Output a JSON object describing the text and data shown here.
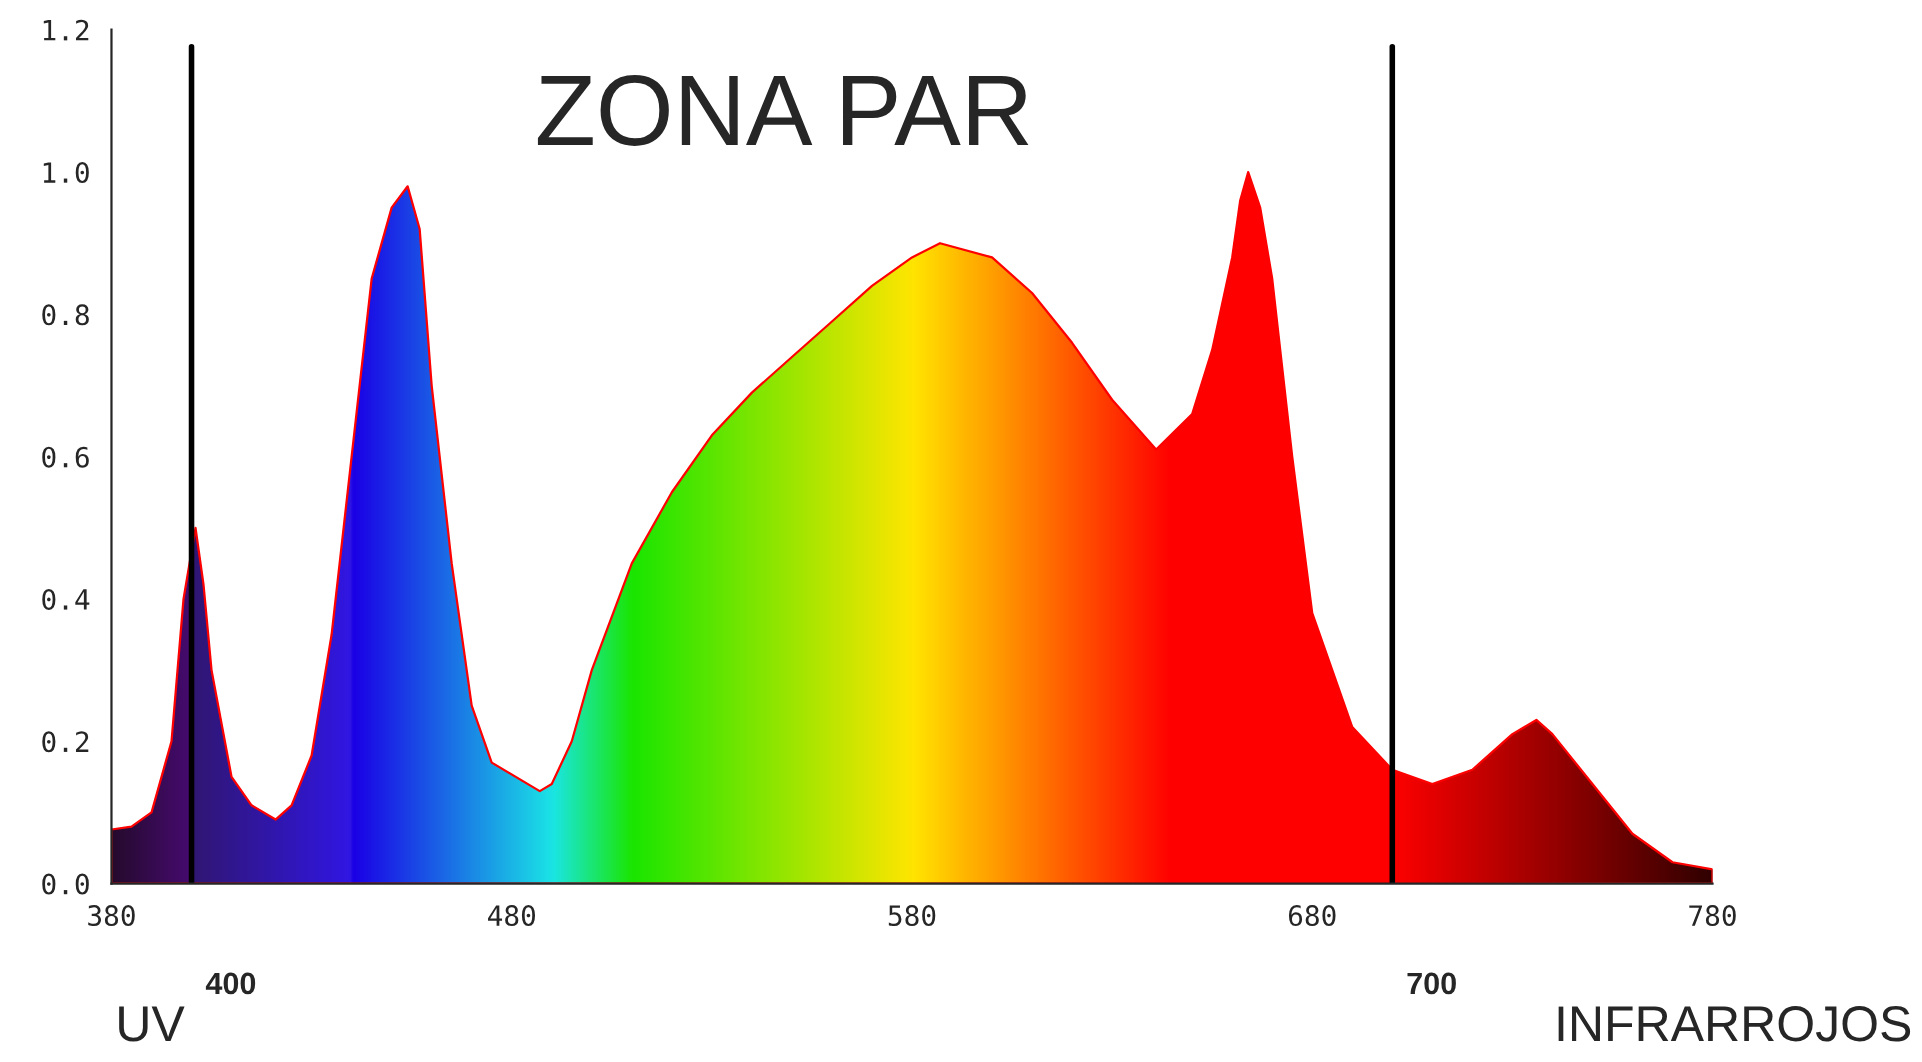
{
  "chart_data": {
    "type": "area",
    "title": "ZONA PAR",
    "x": [
      380,
      385,
      390,
      395,
      398,
      401,
      403,
      405,
      410,
      415,
      421,
      425,
      430,
      435,
      440,
      445,
      450,
      454,
      457,
      460,
      465,
      470,
      475,
      487,
      490,
      495,
      500,
      510,
      520,
      530,
      540,
      550,
      560,
      570,
      580,
      587,
      600,
      610,
      620,
      630,
      641,
      650,
      655,
      660,
      662,
      664,
      667,
      670,
      675,
      680,
      690,
      700,
      710,
      720,
      730,
      736,
      740,
      750,
      760,
      770,
      780
    ],
    "series": [
      {
        "color": "#ff0000",
        "values": [
          0.076,
          0.08,
          0.1,
          0.2,
          0.4,
          0.5,
          0.42,
          0.3,
          0.15,
          0.11,
          0.09,
          0.11,
          0.18,
          0.35,
          0.6,
          0.85,
          0.95,
          0.98,
          0.92,
          0.7,
          0.45,
          0.25,
          0.17,
          0.13,
          0.14,
          0.2,
          0.3,
          0.45,
          0.55,
          0.63,
          0.69,
          0.74,
          0.79,
          0.84,
          0.88,
          0.9,
          0.88,
          0.83,
          0.76,
          0.68,
          0.61,
          0.66,
          0.75,
          0.88,
          0.96,
          1.0,
          0.95,
          0.85,
          0.6,
          0.38,
          0.22,
          0.16,
          0.14,
          0.16,
          0.21,
          0.23,
          0.21,
          0.14,
          0.07,
          0.03,
          0.02
        ]
      }
    ],
    "xlim": [
      380,
      780
    ],
    "xticks": [
      380,
      480,
      580,
      680,
      780
    ],
    "ylim": [
      0,
      1.2
    ],
    "yticks": [
      {
        "value": 0,
        "label": "0.0"
      },
      {
        "value": 0.2,
        "label": "0.2"
      },
      {
        "value": 0.4,
        "label": "0.4"
      },
      {
        "value": 0.6,
        "label": "0.6"
      },
      {
        "value": 0.8,
        "label": "0.8"
      },
      {
        "value": 1.0,
        "label": "1.0"
      },
      {
        "value": 1.2,
        "label": "1.2"
      }
    ],
    "ref_lines": [
      {
        "axis": "x",
        "value": 400,
        "label": "400",
        "color": "#000000"
      },
      {
        "axis": "x",
        "value": 700,
        "label": "700",
        "color": "#000000"
      }
    ],
    "annotations": [
      "UV",
      "INFRARROJOS"
    ],
    "grid": false,
    "legend": false
  }
}
